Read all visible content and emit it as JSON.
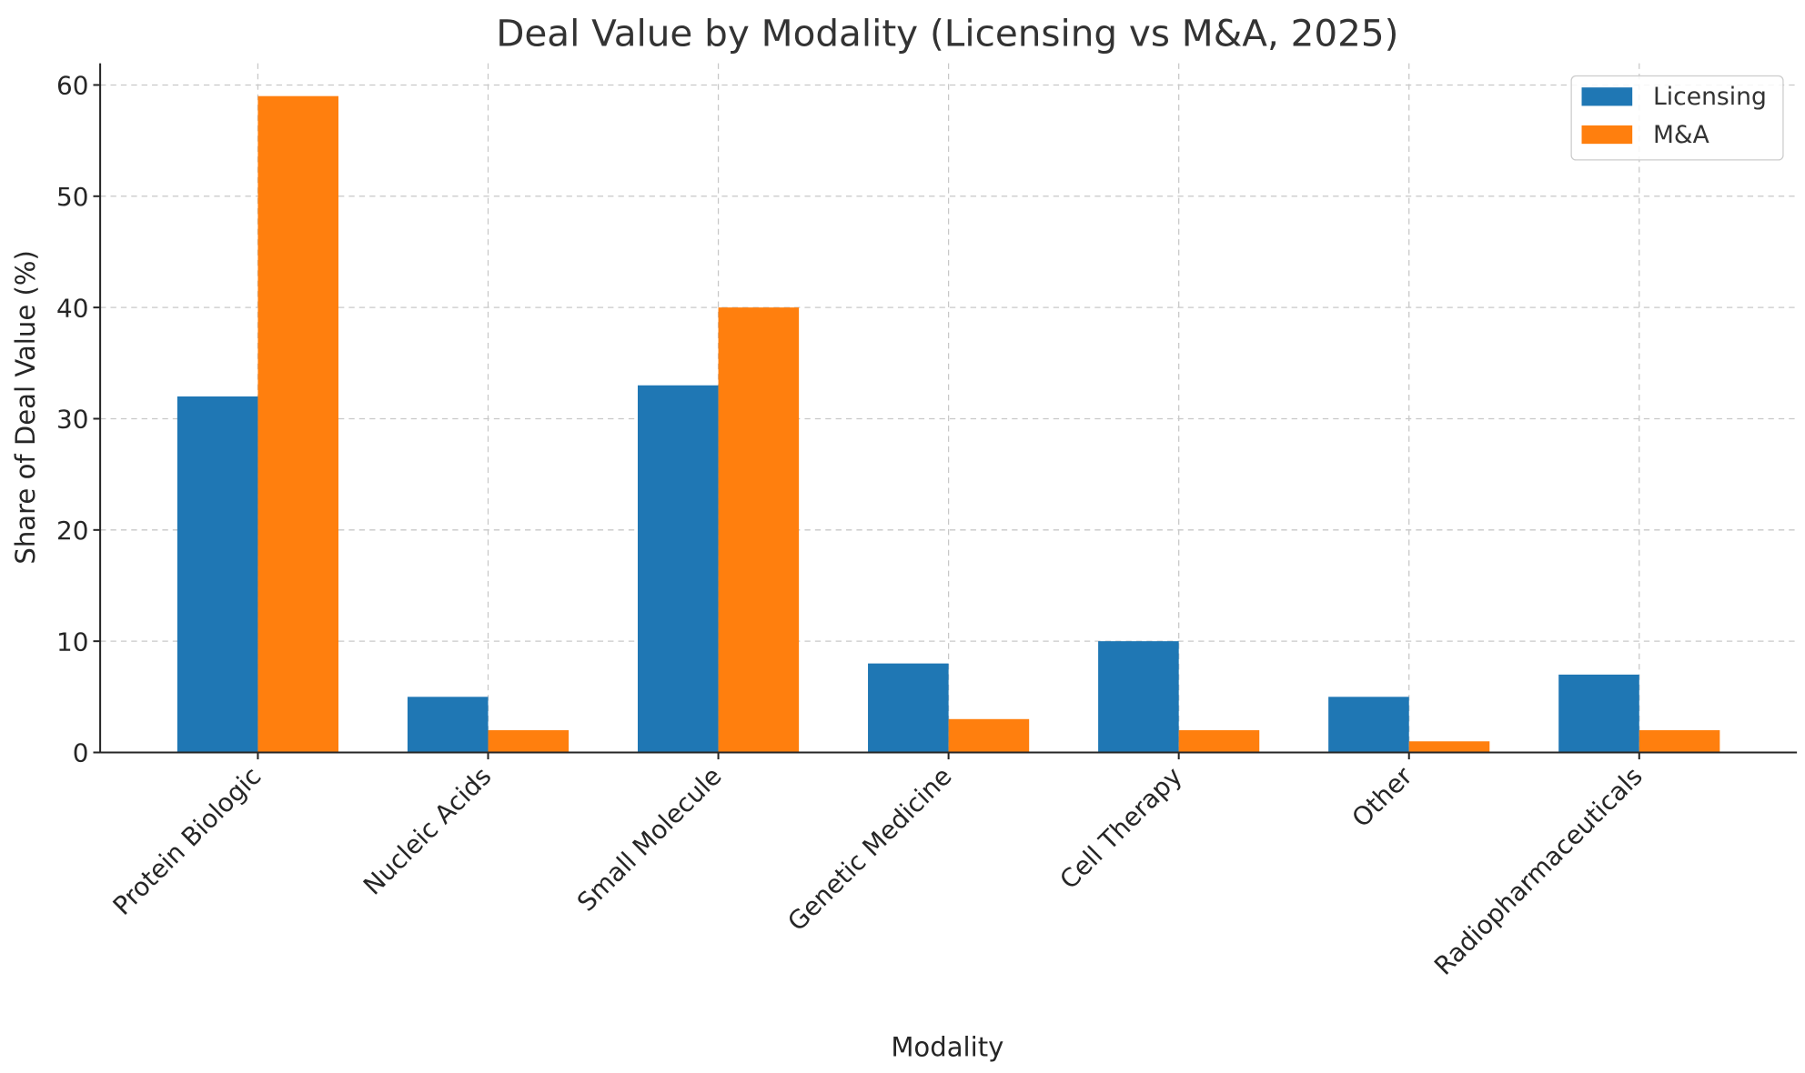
{
  "chart_data": {
    "type": "bar",
    "title": "Deal Value by Modality (Licensing vs M&A, 2025)",
    "xlabel": "Modality",
    "ylabel": "Share of Deal Value (%)",
    "categories": [
      "Protein Biologic",
      "Nucleic Acids",
      "Small Molecule",
      "Genetic Medicine",
      "Cell Therapy",
      "Other",
      "Radiopharmaceuticals"
    ],
    "series": [
      {
        "name": "Licensing",
        "color": "#1f77b4",
        "values": [
          32,
          5,
          33,
          8,
          10,
          5,
          7
        ]
      },
      {
        "name": "M&A",
        "color": "#ff7f0e",
        "values": [
          59,
          2,
          40,
          3,
          2,
          1,
          2
        ]
      }
    ],
    "ylim": [
      0,
      61.95
    ],
    "yticks": [
      0,
      10,
      20,
      30,
      40,
      50,
      60
    ],
    "grid": true,
    "legend_position": "top-right"
  }
}
